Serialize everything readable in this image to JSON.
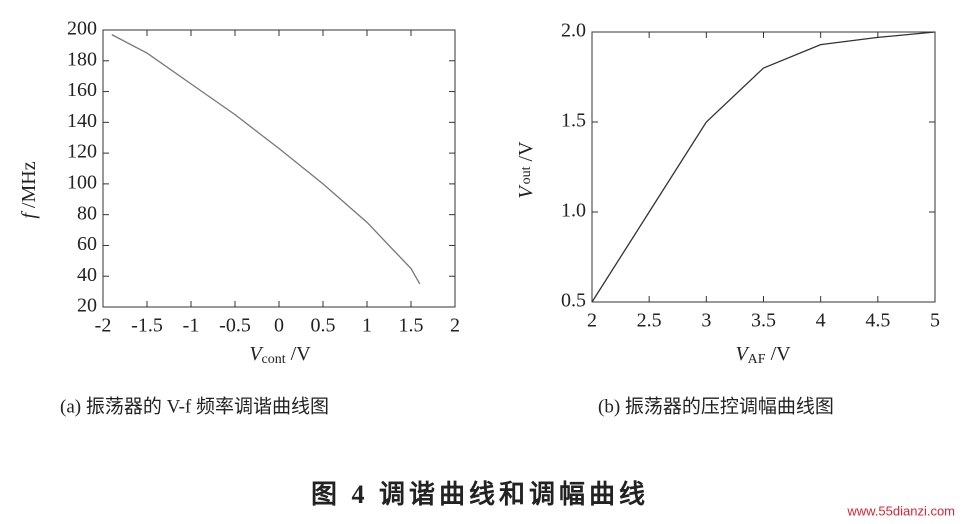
{
  "chart_data": [
    {
      "type": "line",
      "x": [
        -1.9,
        -1.5,
        -1,
        -0.5,
        0,
        0.5,
        1,
        1.5,
        1.6
      ],
      "values": [
        197,
        185,
        165,
        145,
        123,
        100,
        75,
        45,
        35
      ],
      "color": "#777777",
      "xlim": [
        -2,
        2
      ],
      "xticks": [
        -2,
        -1.5,
        -1,
        -0.5,
        0,
        0.5,
        1,
        1.5,
        2
      ],
      "ylim": [
        20,
        200
      ],
      "yticks": [
        20,
        40,
        60,
        80,
        100,
        120,
        140,
        160,
        180,
        200
      ],
      "xlabel": {
        "symbol": "V",
        "subscript": "cont",
        "unit": " /V"
      },
      "ylabel": {
        "symbol": "f",
        "unit": " /MHz"
      },
      "caption": "(a)  振荡器的 V-f 频率调谐曲线图"
    },
    {
      "type": "line",
      "x": [
        2,
        2.5,
        3,
        3.5,
        4,
        4.5,
        5
      ],
      "values": [
        0.5,
        1.0,
        1.5,
        1.8,
        1.93,
        1.97,
        2.0
      ],
      "color": "#333333",
      "xlim": [
        2,
        5
      ],
      "xticks": [
        2,
        2.5,
        3,
        3.5,
        4,
        4.5,
        5
      ],
      "ylim": [
        0.5,
        2.0
      ],
      "yticks": [
        0.5,
        {
          "value": 1.0,
          "label": "1.0"
        },
        1.5,
        {
          "value": 2.0,
          "label": "2.0"
        }
      ],
      "xlabel": {
        "symbol": "V",
        "subscript": "AF",
        "unit": " /V"
      },
      "ylabel": {
        "symbol": "V",
        "subscript": "out",
        "unit": " /V"
      },
      "caption": "(b)  振荡器的压控调幅曲线图"
    }
  ],
  "figure_title": "图 4   调谐曲线和调幅曲线",
  "watermark": "www.55dianzi.com"
}
